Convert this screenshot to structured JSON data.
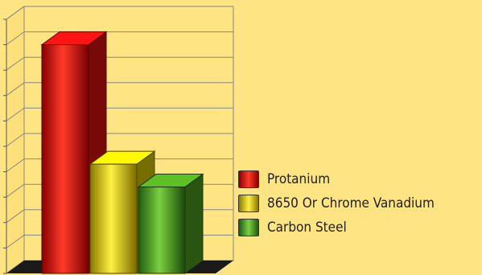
{
  "chart_data": {
    "type": "bar",
    "style": "3d",
    "series": [
      {
        "name": "Protanium",
        "value": 9.0,
        "color": "#d81010"
      },
      {
        "name": "8650 Or Chrome Vanadium",
        "value": 4.3,
        "color": "#d8c800"
      },
      {
        "name": "Carbon Steel",
        "value": 3.4,
        "color": "#4a9a1e"
      }
    ],
    "ylim": [
      0,
      10
    ],
    "grid": true,
    "legend_position": "right"
  },
  "legend": {
    "items": [
      {
        "label": "Protanium",
        "color": "#d81010"
      },
      {
        "label": "8650 Or Chrome Vanadium",
        "color": "#d8c800"
      },
      {
        "label": "Carbon Steel",
        "color": "#4a9a1e"
      }
    ]
  }
}
